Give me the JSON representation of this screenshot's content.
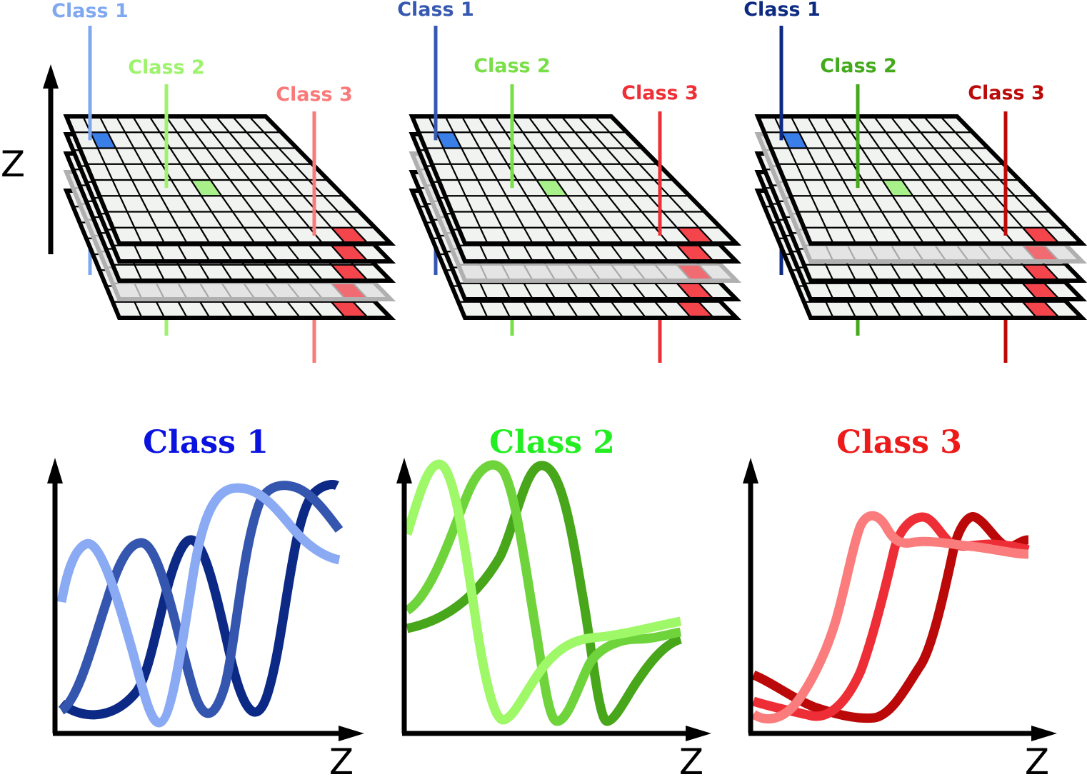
{
  "stacks": [
    {
      "classes": [
        {
          "label": "Class 1",
          "color": "#7fa8f0"
        },
        {
          "label": "Class 2",
          "color": "#9df36b"
        },
        {
          "label": "Class 3",
          "color": "#fa7a7a"
        }
      ],
      "gray_layer": 3
    },
    {
      "classes": [
        {
          "label": "Class 1",
          "color": "#3658b0"
        },
        {
          "label": "Class 2",
          "color": "#78df46"
        },
        {
          "label": "Class 3",
          "color": "#ee2f36"
        }
      ],
      "gray_layer": 2
    },
    {
      "classes": [
        {
          "label": "Class 1",
          "color": "#0d2a82"
        },
        {
          "label": "Class 2",
          "color": "#44aa1c"
        },
        {
          "label": "Class 3",
          "color": "#bb0a0a"
        }
      ],
      "gray_layer": 1
    }
  ],
  "stack_axis_label": "Z",
  "plots": [
    {
      "title": "Class 1",
      "title_color": "#0a12e0",
      "xlabel": "Z",
      "curve_colors": [
        "#8aaaf4",
        "#3556ae",
        "#0b2985"
      ]
    },
    {
      "title": "Class 2",
      "title_color": "#22ee22",
      "xlabel": "Z",
      "curve_colors": [
        "#9ef867",
        "#6fd43c",
        "#47a61a"
      ]
    },
    {
      "title": "Class 3",
      "title_color": "#ee1a1a",
      "xlabel": "Z",
      "curve_colors": [
        "#fb7c7c",
        "#ee2e36",
        "#bb0808"
      ]
    }
  ]
}
